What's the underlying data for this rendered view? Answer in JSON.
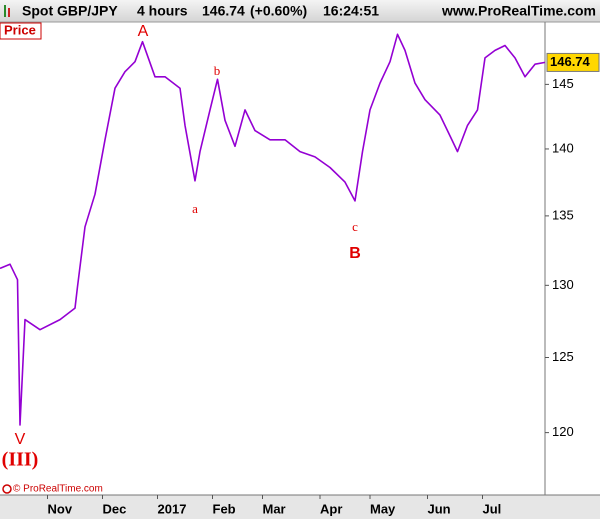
{
  "header": {
    "instrument": "Spot GBP/JPY",
    "timeframe": "4 hours",
    "change": "(+0.60%)",
    "time": "16:24:51",
    "site": "www.ProRealTime.com"
  },
  "panel_label": "Price",
  "copyright": "© ProRealTime.com",
  "chart_data": {
    "type": "line",
    "log_scale": true,
    "x": [
      0,
      4,
      7,
      8,
      10,
      16,
      24,
      30,
      31,
      34,
      38,
      42,
      46,
      50,
      54,
      57,
      62,
      66,
      72,
      74,
      78,
      80,
      84,
      87,
      90,
      94,
      98,
      102,
      108,
      114,
      120,
      126,
      132,
      138,
      142,
      145,
      148,
      152,
      156,
      159,
      162,
      166,
      170,
      176,
      180,
      183,
      187,
      191,
      194,
      198,
      202,
      206,
      210,
      214,
      218
    ],
    "series": [
      {
        "name": "Spot GBP/JPY",
        "color": "#9400d3",
        "values": [
          131.2,
          131.5,
          130.4,
          120.5,
          127.6,
          126.9,
          127.6,
          128.4,
          129.9,
          134.2,
          136.6,
          140.7,
          144.7,
          146.0,
          146.8,
          148.4,
          145.6,
          145.6,
          144.7,
          141.8,
          137.6,
          139.8,
          143.0,
          145.4,
          142.2,
          140.2,
          143.0,
          141.4,
          140.7,
          140.7,
          139.8,
          139.4,
          138.6,
          137.5,
          136.1,
          139.8,
          143.0,
          145.1,
          146.8,
          149.0,
          147.7,
          145.1,
          143.8,
          142.6,
          141.0,
          139.8,
          141.8,
          143.0,
          147.1,
          147.7,
          148.1,
          147.1,
          145.6,
          146.6,
          146.74
        ]
      }
    ],
    "xlim": [
      0,
      218
    ],
    "xticks": [
      {
        "value": 19,
        "label": "Nov"
      },
      {
        "value": 41,
        "label": "Dec"
      },
      {
        "value": 63,
        "label": "2017"
      },
      {
        "value": 85,
        "label": "Feb"
      },
      {
        "value": 105,
        "label": "Mar"
      },
      {
        "value": 128,
        "label": "Apr"
      },
      {
        "value": 148,
        "label": "May"
      },
      {
        "value": 171,
        "label": "Jun"
      },
      {
        "value": 193,
        "label": "Jul"
      }
    ],
    "ylim": [
      116,
      150
    ],
    "yticks": [
      120,
      125,
      130,
      135,
      140,
      145
    ],
    "annotations": [
      "A",
      "a",
      "b",
      "c",
      "B",
      "V",
      "(III)"
    ],
    "annotation_color": "#e00000"
  }
}
